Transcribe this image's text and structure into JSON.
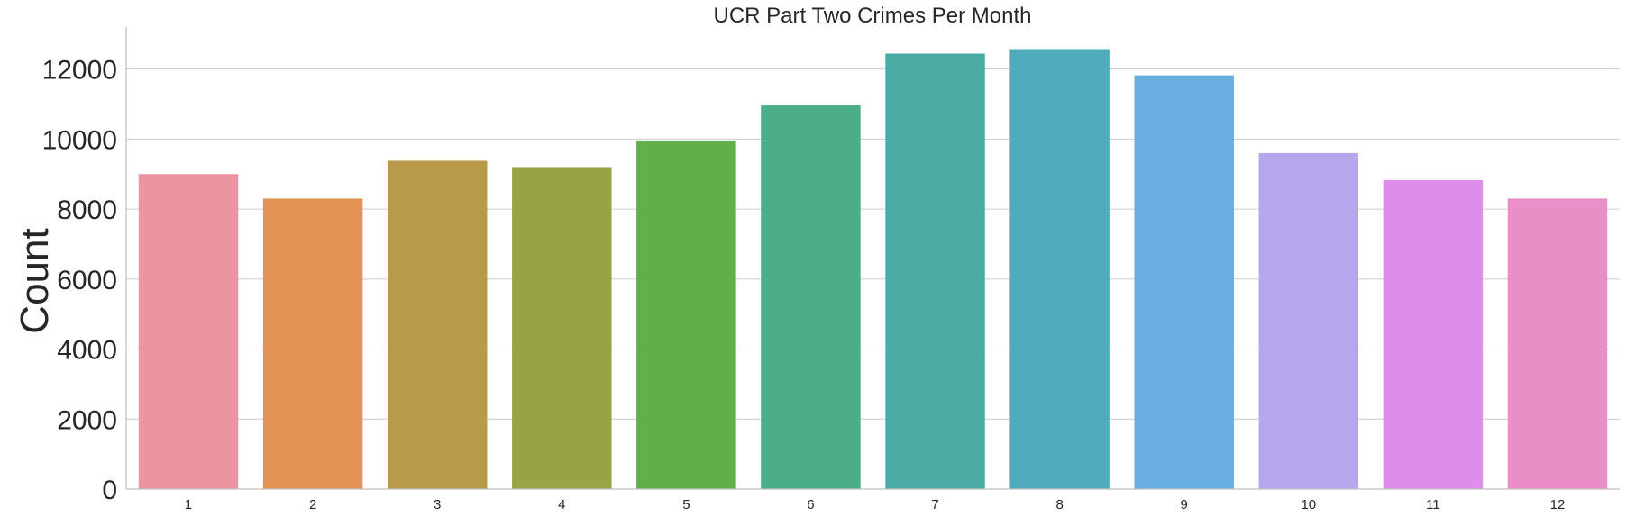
{
  "chart_data": {
    "type": "bar",
    "title": "UCR Part Two Crimes Per Month",
    "xlabel": "",
    "ylabel": "Count",
    "categories": [
      "1",
      "2",
      "3",
      "4",
      "5",
      "6",
      "7",
      "8",
      "9",
      "10",
      "11",
      "12"
    ],
    "values": [
      9000,
      8300,
      9380,
      9200,
      9960,
      10960,
      12440,
      12570,
      11820,
      9600,
      8830,
      8300
    ],
    "ylim": [
      0,
      13200
    ],
    "yticks": [
      0,
      2000,
      4000,
      6000,
      8000,
      10000,
      12000
    ],
    "grid": true,
    "legend": "none",
    "colors": [
      "#eb95a1",
      "#e29254",
      "#b89b4a",
      "#98a345",
      "#61ae4b",
      "#4bae88",
      "#4aaba5",
      "#50abbd",
      "#69aee0",
      "#b6a7ec",
      "#df8deb",
      "#e98ec7"
    ]
  }
}
